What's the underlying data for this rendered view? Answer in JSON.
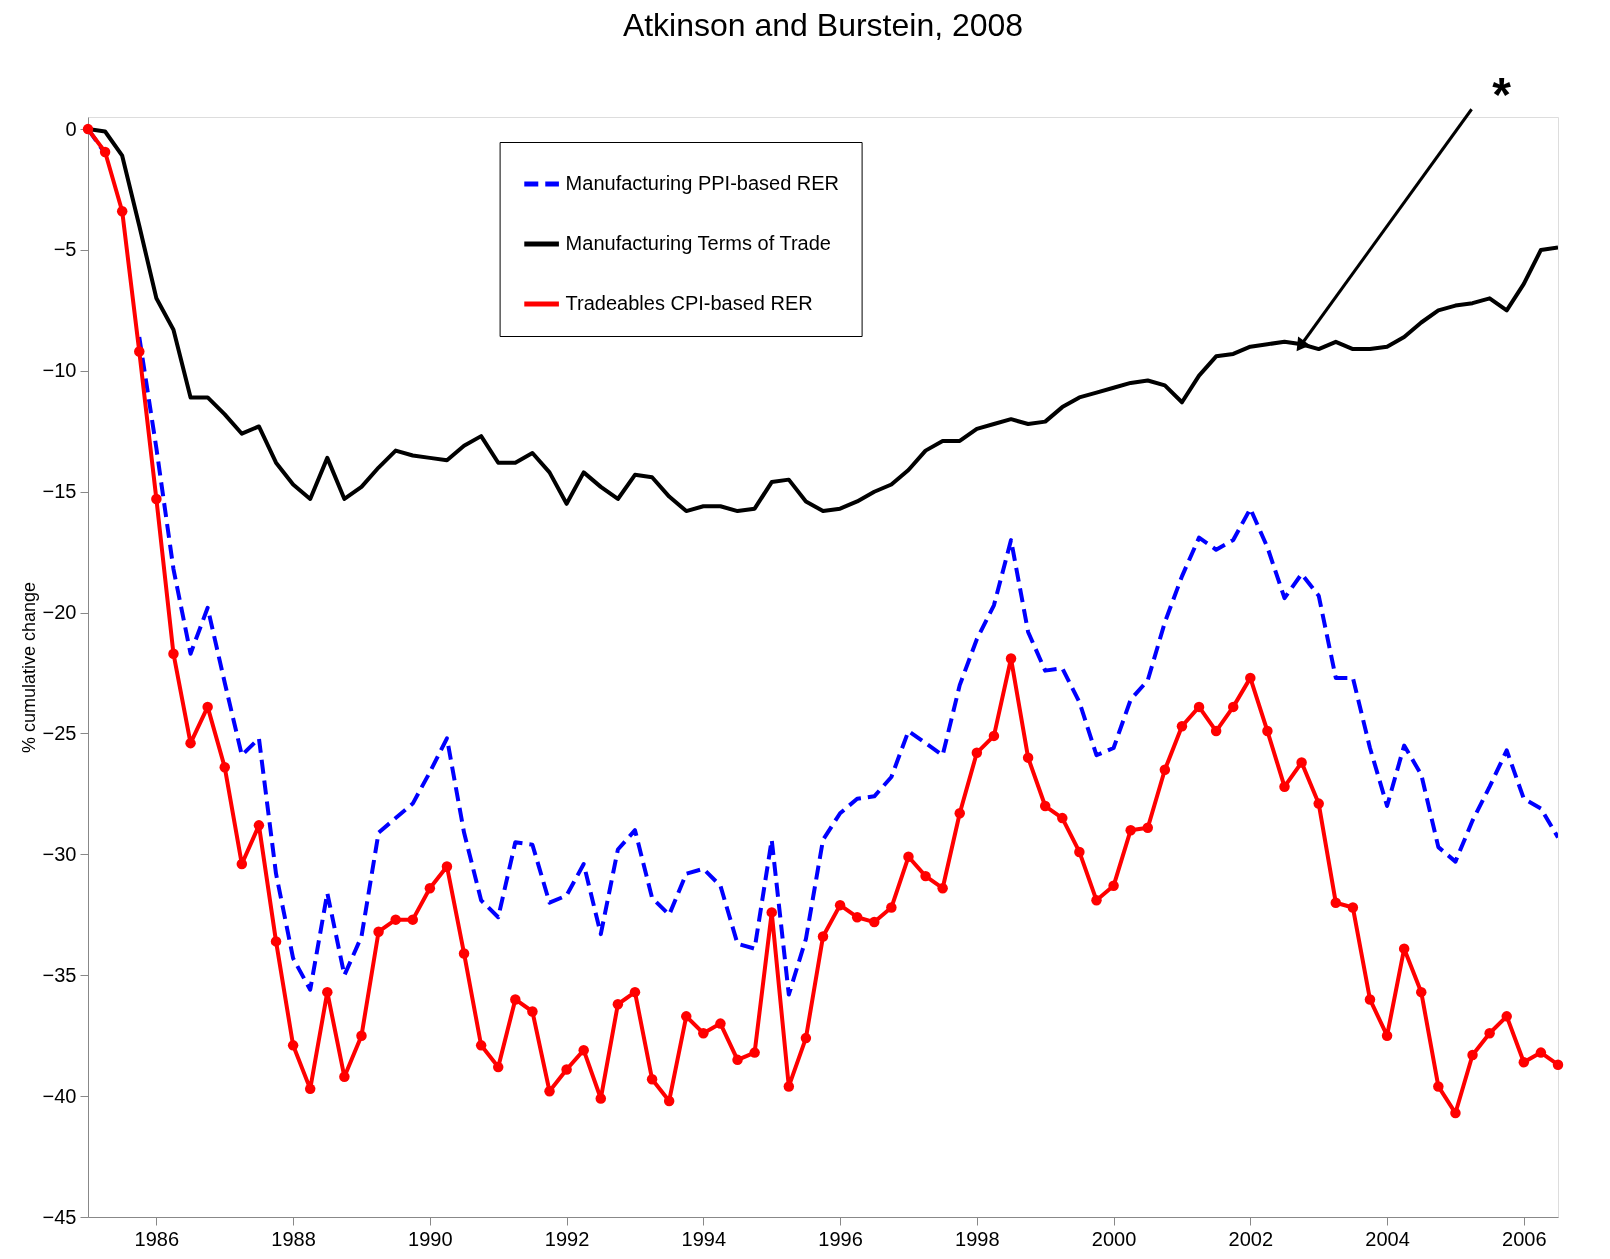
{
  "chart_data": {
    "type": "line",
    "title": "Atkinson and Burstein, 2008",
    "ylabel": "% cumulative change",
    "x": [
      1985,
      1985.25,
      1985.5,
      1985.75,
      1986,
      1986.25,
      1986.5,
      1986.75,
      1987,
      1987.25,
      1987.5,
      1987.75,
      1988,
      1988.25,
      1988.5,
      1988.75,
      1989,
      1989.25,
      1989.5,
      1989.75,
      1990,
      1990.25,
      1990.5,
      1990.75,
      1991,
      1991.25,
      1991.5,
      1991.75,
      1992,
      1992.25,
      1992.5,
      1992.75,
      1993,
      1993.25,
      1993.5,
      1993.75,
      1994,
      1994.25,
      1994.5,
      1994.75,
      1995,
      1995.25,
      1995.5,
      1995.75,
      1996,
      1996.25,
      1996.5,
      1996.75,
      1997,
      1997.25,
      1997.5,
      1997.75,
      1998,
      1998.25,
      1998.5,
      1998.75,
      1999,
      1999.25,
      1999.5,
      1999.75,
      2000,
      2000.25,
      2000.5,
      2000.75,
      2001,
      2001.25,
      2001.5,
      2001.75,
      2002,
      2002.25,
      2002.5,
      2002.75,
      2003,
      2003.25,
      2003.5,
      2003.75,
      2004,
      2004.25,
      2004.5,
      2004.75,
      2005,
      2005.25,
      2005.5,
      2005.75,
      2006,
      2006.25,
      2006.5
    ],
    "series": [
      {
        "name": "Manufacturing PPI-based RER",
        "color": "#0000ff",
        "line_style": "dashed",
        "marker": "none",
        "values": [
          0,
          -1.0,
          null,
          -8.6,
          -13.2,
          -18.2,
          -21.7,
          -19.8,
          -22.9,
          -25.9,
          -25.2,
          -30.8,
          -34.3,
          -35.6,
          -31.6,
          -35.0,
          -33.4,
          -29.1,
          -28.5,
          -27.9,
          -26.6,
          -25.2,
          -29.1,
          -31.9,
          -32.6,
          -29.5,
          -29.6,
          -32.0,
          -31.7,
          -30.4,
          -33.3,
          -29.8,
          -29.0,
          -31.8,
          -32.5,
          -30.8,
          -30.6,
          -31.3,
          -33.7,
          -33.9,
          -29.4,
          -35.8,
          -33.5,
          -29.4,
          -28.3,
          -27.7,
          -27.6,
          -26.8,
          -24.9,
          -25.4,
          -25.9,
          -23.0,
          -21.1,
          -19.7,
          -17.0,
          -20.8,
          -22.4,
          -22.3,
          -23.7,
          -25.9,
          -25.6,
          -23.6,
          -22.8,
          -20.4,
          -18.5,
          -16.9,
          -17.4,
          -17.0,
          -15.7,
          -17.3,
          -19.4,
          -18.4,
          -19.3,
          -22.7,
          -22.7,
          -25.6,
          -28.0,
          -25.5,
          -26.7,
          -29.7,
          -30.3,
          -28.6,
          -27.2,
          -25.7,
          -27.7,
          -28.1,
          -29.3
        ]
      },
      {
        "name": "Manufacturing Terms of Trade",
        "color": "#000000",
        "line_style": "solid",
        "marker": "none",
        "values": [
          0,
          -0.1,
          -1.1,
          -4.0,
          -7.0,
          -8.3,
          -11.1,
          -11.1,
          -11.8,
          -12.6,
          -12.3,
          -13.8,
          -14.7,
          -15.3,
          -13.6,
          -15.3,
          -14.8,
          -14.0,
          -13.3,
          -13.5,
          -13.6,
          -13.7,
          -13.1,
          -12.7,
          -13.8,
          -13.8,
          -13.4,
          -14.2,
          -15.5,
          -14.2,
          -14.8,
          -15.3,
          -14.3,
          -14.4,
          -15.2,
          -15.8,
          -15.6,
          -15.6,
          -15.8,
          -15.7,
          -14.6,
          -14.5,
          -15.4,
          -15.8,
          -15.7,
          -15.4,
          -15.0,
          -14.7,
          -14.1,
          -13.3,
          -12.9,
          -12.9,
          -12.4,
          -12.2,
          -12.0,
          -12.2,
          -12.1,
          -11.5,
          -11.1,
          -10.9,
          -10.7,
          -10.5,
          -10.4,
          -10.6,
          -11.3,
          -10.2,
          -9.4,
          -9.3,
          -9.0,
          -8.9,
          -8.8,
          -8.9,
          -9.1,
          -8.8,
          -9.1,
          -9.1,
          -9.0,
          -8.6,
          -8.0,
          -7.5,
          -7.3,
          -7.2,
          -7.0,
          -7.5,
          -6.4,
          -5.0,
          -4.9
        ]
      },
      {
        "name": "Tradeables CPI-based RER",
        "color": "#ff0000",
        "line_style": "solid",
        "marker": "circle",
        "values": [
          0,
          -0.95,
          -3.4,
          -9.2,
          -15.3,
          -21.7,
          -25.4,
          -23.9,
          -26.4,
          -30.4,
          -28.8,
          -33.6,
          -37.9,
          -39.7,
          -35.7,
          -39.2,
          -37.5,
          -33.2,
          -32.7,
          -32.7,
          -31.4,
          -30.5,
          -34.1,
          -37.9,
          -38.8,
          -36.0,
          -36.5,
          -39.8,
          -38.9,
          -38.1,
          -40.1,
          -36.2,
          -35.7,
          -39.3,
          -40.2,
          -36.7,
          -37.4,
          -37.0,
          -38.5,
          -38.2,
          -32.4,
          -39.6,
          -37.6,
          -33.4,
          -32.1,
          -32.6,
          -32.8,
          -32.2,
          -30.1,
          -30.9,
          -31.4,
          -28.3,
          -25.8,
          -25.1,
          -21.9,
          -26.0,
          -28.0,
          -28.5,
          -29.9,
          -31.9,
          -31.3,
          -29.0,
          -28.9,
          -26.5,
          -24.7,
          -23.9,
          -24.9,
          -23.9,
          -22.7,
          -24.9,
          -27.2,
          -26.2,
          -27.9,
          -32.0,
          -32.2,
          -36.0,
          -37.5,
          -33.9,
          -35.7,
          -39.6,
          -40.7,
          -38.3,
          -37.4,
          -36.7,
          -38.6,
          -38.2,
          -38.7
        ]
      }
    ],
    "xlim": [
      1985,
      2006.5
    ],
    "ylim": [
      -45,
      0.5
    ],
    "xticks": [
      1986,
      1988,
      1990,
      1992,
      1994,
      1996,
      1998,
      2000,
      2002,
      2004,
      2006
    ],
    "yticks": [
      0,
      -5,
      -10,
      -15,
      -20,
      -25,
      -30,
      -35,
      -40,
      -45
    ],
    "annotations": [
      {
        "text": "*",
        "x": 2002.75,
        "y": -8.9
      }
    ],
    "legend": "top",
    "grid": false
  }
}
